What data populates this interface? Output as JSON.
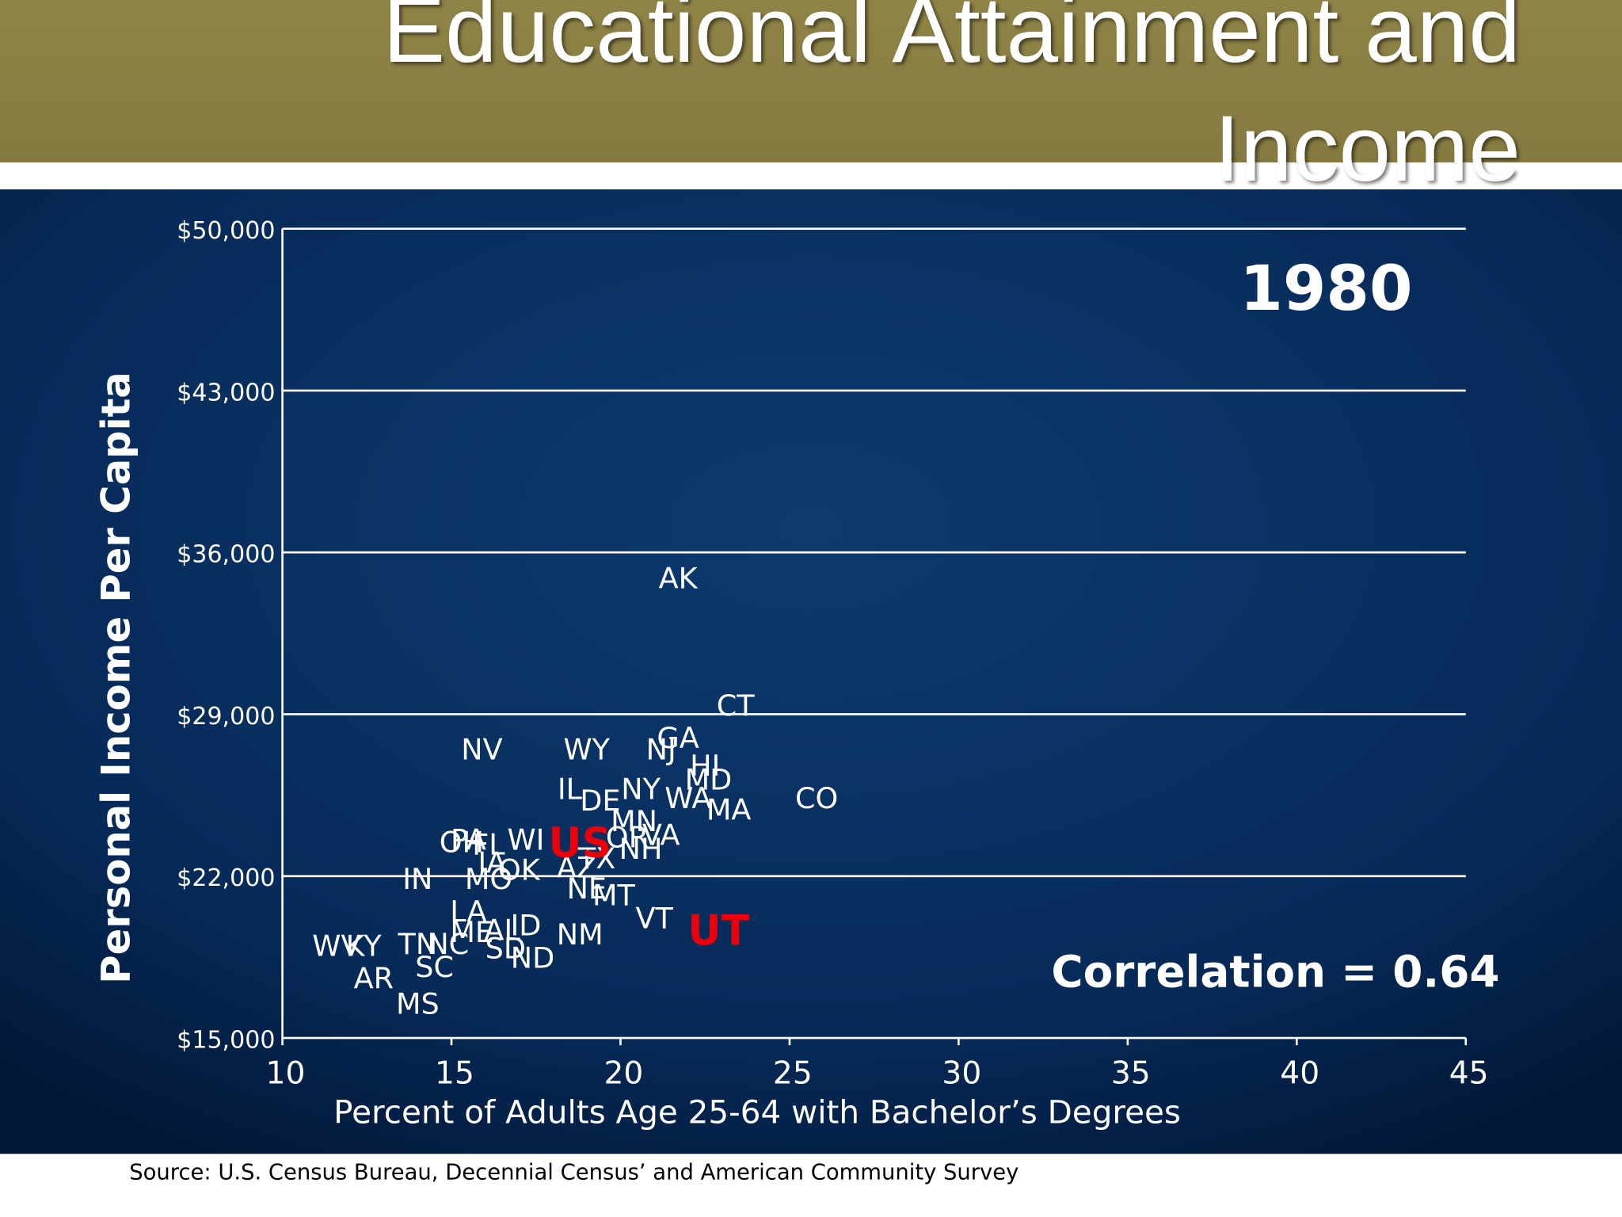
{
  "chart_data": {
    "type": "scatter",
    "title": "Educational Attainment and Income",
    "annotation": "1980",
    "correlation_label": "Correlation = 0.64",
    "source": "Source:  U.S. Census Bureau, Decennial Census’ and American Community Survey",
    "x_label": "Percent of Adults Age 25-64 with Bachelor’s Degrees",
    "y_label": "Personal Income Per Capita",
    "xlim": [
      10,
      45
    ],
    "xticks": [
      10,
      15,
      20,
      25,
      30,
      35,
      40,
      45
    ],
    "ylim": [
      15000,
      50000
    ],
    "yticks": [
      {
        "value": 15000,
        "label": "$15,000"
      },
      {
        "value": 22000,
        "label": "$22,000"
      },
      {
        "value": 29000,
        "label": "$29,000"
      },
      {
        "value": 36000,
        "label": "$36,000"
      },
      {
        "value": 43000,
        "label": "$43,000"
      },
      {
        "value": 50000,
        "label": "$50,000"
      }
    ],
    "grid": true,
    "points": [
      {
        "label": "AK",
        "x": 21.7,
        "y": 34800,
        "color": "#ffffff"
      },
      {
        "label": "CT",
        "x": 23.4,
        "y": 29300,
        "color": "#ffffff"
      },
      {
        "label": "GA",
        "x": 21.7,
        "y": 27900,
        "color": "#ffffff"
      },
      {
        "label": "NJ",
        "x": 21.2,
        "y": 27400,
        "color": "#ffffff"
      },
      {
        "label": "HI",
        "x": 22.5,
        "y": 26700,
        "color": "#ffffff"
      },
      {
        "label": "MD",
        "x": 22.6,
        "y": 26100,
        "color": "#ffffff"
      },
      {
        "label": "NY",
        "x": 20.6,
        "y": 25700,
        "color": "#ffffff"
      },
      {
        "label": "WA",
        "x": 22.0,
        "y": 25300,
        "color": "#ffffff"
      },
      {
        "label": "MA",
        "x": 23.2,
        "y": 24800,
        "color": "#ffffff"
      },
      {
        "label": "CO",
        "x": 25.8,
        "y": 25300,
        "color": "#ffffff"
      },
      {
        "label": "NV",
        "x": 15.9,
        "y": 27400,
        "color": "#ffffff"
      },
      {
        "label": "WY",
        "x": 19.0,
        "y": 27400,
        "color": "#ffffff"
      },
      {
        "label": "IL",
        "x": 18.5,
        "y": 25700,
        "color": "#ffffff"
      },
      {
        "label": "DE",
        "x": 19.4,
        "y": 25200,
        "color": "#ffffff"
      },
      {
        "label": "MN",
        "x": 20.4,
        "y": 24300,
        "color": "#ffffff"
      },
      {
        "label": "OR",
        "x": 20.2,
        "y": 23600,
        "color": "#ffffff"
      },
      {
        "label": "VA",
        "x": 21.2,
        "y": 23700,
        "color": "#ffffff"
      },
      {
        "label": "NH",
        "x": 20.6,
        "y": 23100,
        "color": "#ffffff"
      },
      {
        "label": "PA",
        "x": 15.5,
        "y": 23500,
        "color": "#ffffff"
      },
      {
        "label": "OH",
        "x": 15.3,
        "y": 23400,
        "color": "#ffffff"
      },
      {
        "label": "FL",
        "x": 16.1,
        "y": 23300,
        "color": "#ffffff"
      },
      {
        "label": "WI",
        "x": 17.2,
        "y": 23500,
        "color": "#ffffff"
      },
      {
        "label": "IA",
        "x": 16.2,
        "y": 22500,
        "color": "#ffffff"
      },
      {
        "label": "OK",
        "x": 17.0,
        "y": 22200,
        "color": "#ffffff"
      },
      {
        "label": "MO",
        "x": 16.1,
        "y": 21800,
        "color": "#ffffff"
      },
      {
        "label": "AZ",
        "x": 18.7,
        "y": 22300,
        "color": "#ffffff"
      },
      {
        "label": "TX",
        "x": 19.3,
        "y": 22700,
        "color": "#ffffff"
      },
      {
        "label": "NE",
        "x": 19.0,
        "y": 21400,
        "color": "#ffffff"
      },
      {
        "label": "MT",
        "x": 19.8,
        "y": 21100,
        "color": "#ffffff"
      },
      {
        "label": "IN",
        "x": 14.0,
        "y": 21800,
        "color": "#ffffff"
      },
      {
        "label": "VT",
        "x": 21.0,
        "y": 20100,
        "color": "#ffffff"
      },
      {
        "label": "NM",
        "x": 18.8,
        "y": 19400,
        "color": "#ffffff"
      },
      {
        "label": "LA",
        "x": 15.5,
        "y": 20400,
        "color": "#ffffff"
      },
      {
        "label": "ME",
        "x": 15.6,
        "y": 19500,
        "color": "#ffffff"
      },
      {
        "label": "AL",
        "x": 16.5,
        "y": 19600,
        "color": "#ffffff"
      },
      {
        "label": "ID",
        "x": 17.2,
        "y": 19800,
        "color": "#ffffff"
      },
      {
        "label": "SD",
        "x": 16.6,
        "y": 18800,
        "color": "#ffffff"
      },
      {
        "label": "ND",
        "x": 17.4,
        "y": 18400,
        "color": "#ffffff"
      },
      {
        "label": "NC",
        "x": 14.9,
        "y": 19000,
        "color": "#ffffff"
      },
      {
        "label": "SC",
        "x": 14.5,
        "y": 18000,
        "color": "#ffffff"
      },
      {
        "label": "TN",
        "x": 14.0,
        "y": 19000,
        "color": "#ffffff"
      },
      {
        "label": "WV",
        "x": 11.6,
        "y": 18900,
        "color": "#ffffff"
      },
      {
        "label": "KY",
        "x": 12.4,
        "y": 18900,
        "color": "#ffffff"
      },
      {
        "label": "AR",
        "x": 12.7,
        "y": 17500,
        "color": "#ffffff"
      },
      {
        "label": "MS",
        "x": 14.0,
        "y": 16400,
        "color": "#ffffff"
      },
      {
        "label": "US",
        "x": 18.8,
        "y": 23300,
        "color": "#e8000b"
      },
      {
        "label": "UT",
        "x": 22.9,
        "y": 19500,
        "color": "#e8000b"
      }
    ]
  }
}
